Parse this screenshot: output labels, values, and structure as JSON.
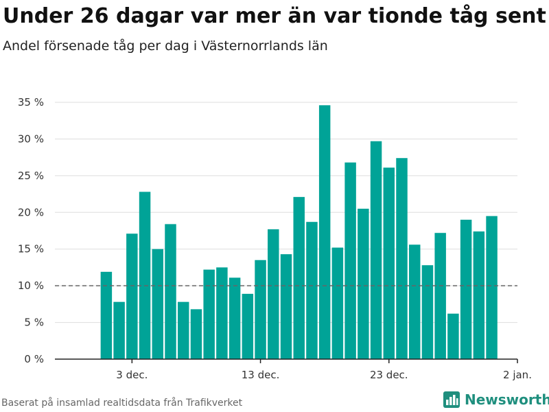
{
  "title": "Under 26 dagar var mer än var tionde tåg sent",
  "subtitle": "Andel försenade tåg per dag i Västernorrlands län",
  "footer": "Baserat på insamlad realtidsdata från Trafikverket",
  "brand": {
    "name": "Newsworthy",
    "icon": "bar-chart-icon"
  },
  "colors": {
    "bar": "#00a397",
    "reference_line": "#666666",
    "grid": "#dddddd",
    "brand": "#1f8f7e"
  },
  "chart_data": {
    "type": "bar",
    "x": [
      "2023-12-01",
      "2023-12-02",
      "2023-12-03",
      "2023-12-04",
      "2023-12-05",
      "2023-12-06",
      "2023-12-07",
      "2023-12-08",
      "2023-12-09",
      "2023-12-10",
      "2023-12-11",
      "2023-12-12",
      "2023-12-13",
      "2023-12-14",
      "2023-12-15",
      "2023-12-16",
      "2023-12-17",
      "2023-12-18",
      "2023-12-19",
      "2023-12-20",
      "2023-12-21",
      "2023-12-22",
      "2023-12-23",
      "2023-12-24",
      "2023-12-25",
      "2023-12-26",
      "2023-12-27",
      "2023-12-28",
      "2023-12-29",
      "2023-12-30",
      "2023-12-31"
    ],
    "values": [
      11.9,
      7.8,
      17.1,
      22.8,
      15.0,
      18.4,
      7.8,
      6.8,
      12.2,
      12.5,
      11.1,
      8.9,
      13.5,
      17.7,
      14.3,
      22.1,
      18.7,
      34.6,
      15.2,
      26.8,
      20.5,
      29.7,
      26.1,
      27.4,
      15.6,
      12.8,
      17.2,
      6.2,
      19.0,
      17.4,
      19.5
    ],
    "reference_line": 10,
    "yticks": [
      "0 %",
      "5 %",
      "10 %",
      "15 %",
      "20 %",
      "25 %",
      "30 %",
      "35 %"
    ],
    "ytick_values": [
      0,
      5,
      10,
      15,
      20,
      25,
      30,
      35
    ],
    "xticks": [
      {
        "label": "3 dec.",
        "date": "2023-12-03"
      },
      {
        "label": "13 dec.",
        "date": "2023-12-13"
      },
      {
        "label": "23 dec.",
        "date": "2023-12-23"
      },
      {
        "label": "2 jan.",
        "date": "2024-01-02"
      }
    ],
    "xlim": [
      "2023-11-27",
      "2024-01-02"
    ],
    "ylim": [
      0,
      35
    ],
    "grid": true
  }
}
